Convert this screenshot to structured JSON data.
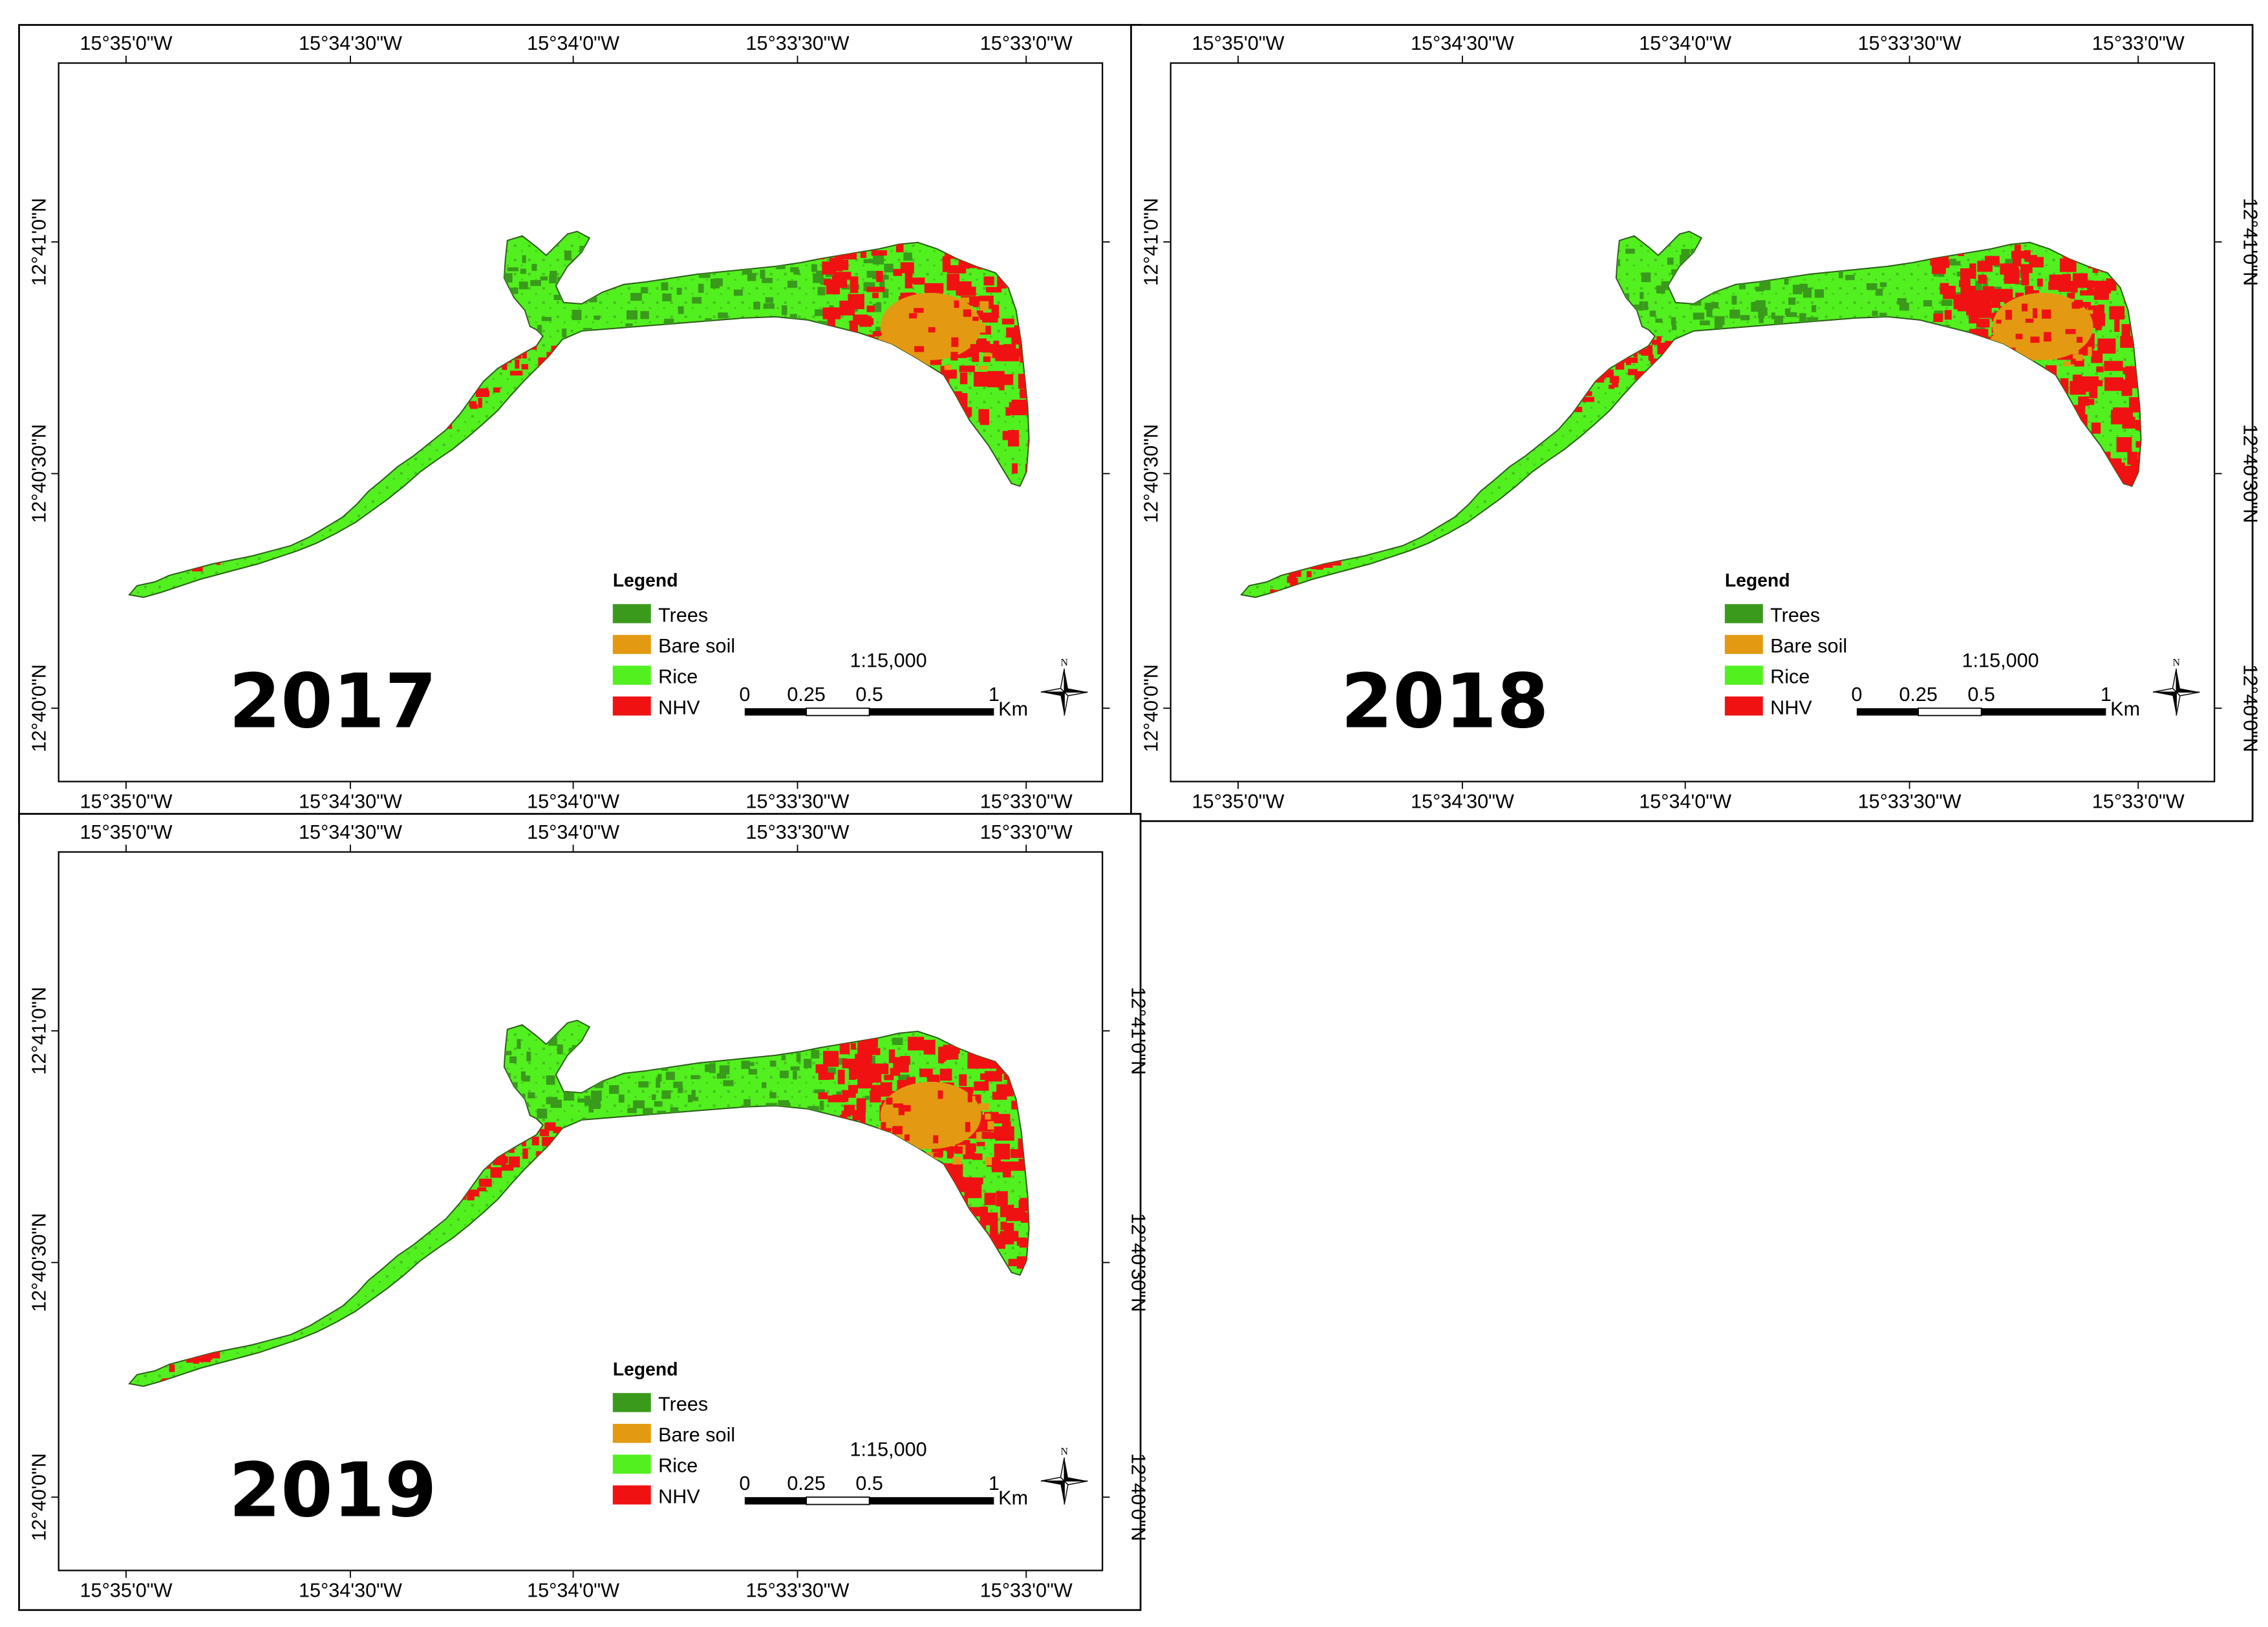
{
  "maps": [
    {
      "id": "map-2017",
      "year": "2017",
      "lon_ticks": [
        "15°35'0\"W",
        "15°34'30\"W",
        "15°34'0\"W",
        "15°33'30\"W",
        "15°33'0\"W"
      ],
      "lat_ticks": [
        "12°41'0\"N",
        "12°40'30\"N",
        "12°40'0\"N"
      ],
      "variant": 0
    },
    {
      "id": "map-2018",
      "year": "2018",
      "lon_ticks": [
        "15°35'0\"W",
        "15°34'30\"W",
        "15°34'0\"W",
        "15°33'30\"W",
        "15°33'0\"W"
      ],
      "lat_ticks": [
        "12°41'0\"N",
        "12°40'30\"N",
        "12°40'0\"N"
      ],
      "variant": 1
    },
    {
      "id": "map-2019",
      "year": "2019",
      "lon_ticks": [
        "15°35'0\"W",
        "15°34'30\"W",
        "15°34'0\"W",
        "15°33'30\"W",
        "15°33'0\"W"
      ],
      "lat_ticks": [
        "12°41'0\"N",
        "12°40'30\"N",
        "12°40'0\"N"
      ],
      "variant": 2
    }
  ],
  "legend": {
    "title": "Legend",
    "items": [
      {
        "label": "Trees",
        "color": "#3a9a1c"
      },
      {
        "label": "Bare soil",
        "color": "#e39a12"
      },
      {
        "label": "Rice",
        "color": "#52f01f"
      },
      {
        "label": "NHV",
        "color": "#f01212"
      }
    ]
  },
  "scale_bar": {
    "ratio": "1:15,000",
    "labels": [
      "0",
      "0.25",
      "0.5",
      "1"
    ],
    "unit": "Km"
  },
  "north_arrow": {
    "label": "N",
    "icon": "north-arrow-icon"
  }
}
